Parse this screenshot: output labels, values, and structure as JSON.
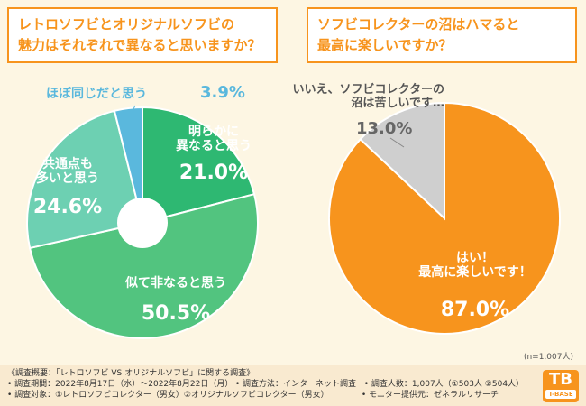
{
  "chart_data": [
    {
      "type": "pie",
      "title_lines": [
        "レトロソフビとオリジナルソフビの",
        "魅力はそれぞれで異なると思いますか？"
      ],
      "slices": [
        {
          "label_lines": [
            "明らかに",
            "異なると思う"
          ],
          "value_text": "21.0%",
          "value": 21.0,
          "color": "#2eb872"
        },
        {
          "label_lines": [
            "似て非なると思う"
          ],
          "value_text": "50.5%",
          "value": 50.5,
          "color": "#52c47f"
        },
        {
          "label_lines": [
            "共通点も",
            "多いと思う"
          ],
          "value_text": "24.6%",
          "value": 24.6,
          "color": "#6dd0b2"
        },
        {
          "label_lines": [
            "ほぼ同じだと思う"
          ],
          "value_text": "3.9%",
          "value": 3.9,
          "color": "#5ab8dd"
        }
      ]
    },
    {
      "type": "pie",
      "title_lines": [
        "ソフビコレクターの沼はハマると",
        "最高に楽しいですか？"
      ],
      "slices": [
        {
          "label_lines": [
            "はい！",
            "最高に楽しいです！"
          ],
          "value_text": "87.0%",
          "value": 87.0,
          "color": "#f7941d"
        },
        {
          "label_lines": [
            "いいえ、ソフビコレクターの",
            "沼は苦しいです…"
          ],
          "value_text": "13.0%",
          "value": 13.0,
          "color": "#cfcfcf"
        }
      ],
      "sample_size": "(n=1,007人)"
    }
  ],
  "footer": {
    "heading": "《調査概要：「レトロソフビ VS オリジナルソフビ」に関する調査》",
    "period": "• 調査期間：2022年8月17日（水）～2022年8月22日（月）",
    "method": "• 調査方法：インターネット調査",
    "count": "• 調査人数：1,007人（①503人 ②504人）",
    "target": "• 調査対象：①レトロソフビコレクター（男女）②オリジナルソフビコレクター（男女）",
    "provider": "• モニター提供元：ゼネラルリサーチ"
  },
  "logo": {
    "mark": "TB",
    "text": "T-BASE"
  }
}
